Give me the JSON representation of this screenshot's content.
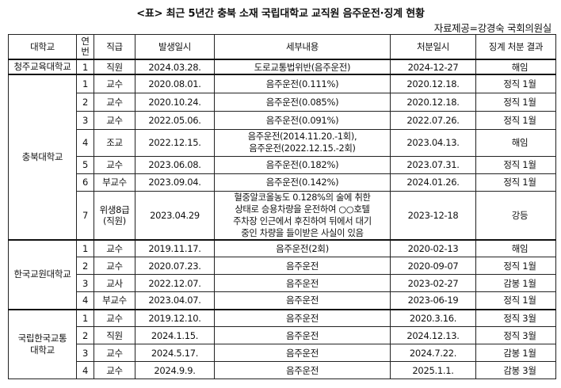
{
  "title": "<표> 최근 5년간 충북 소재 국립대학교 교직원 음주운전·징계 현황",
  "source": "자료제공=강경숙 국회의원실",
  "table": {
    "headers": [
      "대학교",
      "연번",
      "직급",
      "발생일시",
      "세부내용",
      "처분일시",
      "징계 처분 결과"
    ],
    "groups": [
      {
        "name": "청주교육대학교",
        "rows": [
          {
            "no": "1",
            "rank": "직원",
            "date": "2024.03.28.",
            "detail": "도로교통법위반(음주운전)",
            "action_date": "2024-12-27",
            "result": "해임"
          }
        ]
      },
      {
        "name": "충북대학교",
        "rows": [
          {
            "no": "1",
            "rank": "교수",
            "date": "2020.08.01.",
            "detail": "음주운전(0.111%)",
            "action_date": "2020.12.18.",
            "result": "정직 1월"
          },
          {
            "no": "2",
            "rank": "교수",
            "date": "2020.10.24.",
            "detail": "음주운전(0.085%)",
            "action_date": "2020.12.18.",
            "result": "정직 1월"
          },
          {
            "no": "3",
            "rank": "교수",
            "date": "2022.05.06.",
            "detail": "음주운전(0.091%)",
            "action_date": "2022.07.26.",
            "result": "정직 1월"
          },
          {
            "no": "4",
            "rank": "조교",
            "date": "2022.12.15.",
            "detail": "음주운전(2014.11.20.-1회),\n음주운전(2022.12.15.-2회)",
            "action_date": "2023.04.13.",
            "result": "해임"
          },
          {
            "no": "5",
            "rank": "교수",
            "date": "2023.06.08.",
            "detail": "음주운전(0.182%)",
            "action_date": "2023.07.31.",
            "result": "정직 1월"
          },
          {
            "no": "6",
            "rank": "부교수",
            "date": "2023.09.04.",
            "detail": "음주운전(0.142%)",
            "action_date": "2024.01.26.",
            "result": "정직 1월"
          },
          {
            "no": "7",
            "rank": "위생8급\n(직원)",
            "date": "2023.04.29",
            "detail": "혈중알코올농도 0.128%의 술에 취한\n상태로 승용차량을 운전하여 ○○호텔\n주차장 인근에서 후진하여 뒤에서 대기\n중인 차량을 들이받은 사실이 있음",
            "action_date": "2023-12-18",
            "result": "강등"
          }
        ]
      },
      {
        "name": "한국교원대학교",
        "rows": [
          {
            "no": "1",
            "rank": "교수",
            "date": "2019.11.17.",
            "detail": "음주운전(2회)",
            "action_date": "2020-02-13",
            "result": "해임"
          },
          {
            "no": "2",
            "rank": "교수",
            "date": "2020.07.23.",
            "detail": "음주운전",
            "action_date": "2020-09-07",
            "result": "정직 1월"
          },
          {
            "no": "3",
            "rank": "교사",
            "date": "2022.12.07.",
            "detail": "음주운전",
            "action_date": "2023-02-27",
            "result": "감봉 1월"
          },
          {
            "no": "4",
            "rank": "부교수",
            "date": "2023.04.07.",
            "detail": "음주운전",
            "action_date": "2023-06-19",
            "result": "정직 1월"
          }
        ]
      },
      {
        "name": "국립한국교통\n대학교",
        "rows": [
          {
            "no": "1",
            "rank": "교수",
            "date": "2019.12.10.",
            "detail": "음주운전",
            "action_date": "2020.3.16.",
            "result": "정직 3월"
          },
          {
            "no": "2",
            "rank": "직원",
            "date": "2024.1.15.",
            "detail": "음주운전",
            "action_date": "2024.12.13.",
            "result": "정직 3월"
          },
          {
            "no": "3",
            "rank": "교수",
            "date": "2024.5.17.",
            "detail": "음주운전",
            "action_date": "2024.7.22.",
            "result": "감봉 1월"
          },
          {
            "no": "4",
            "rank": "교수",
            "date": "2024.9.9.",
            "detail": "음주운전",
            "action_date": "2025.1.1.",
            "result": "감봉 3월"
          }
        ]
      }
    ]
  }
}
